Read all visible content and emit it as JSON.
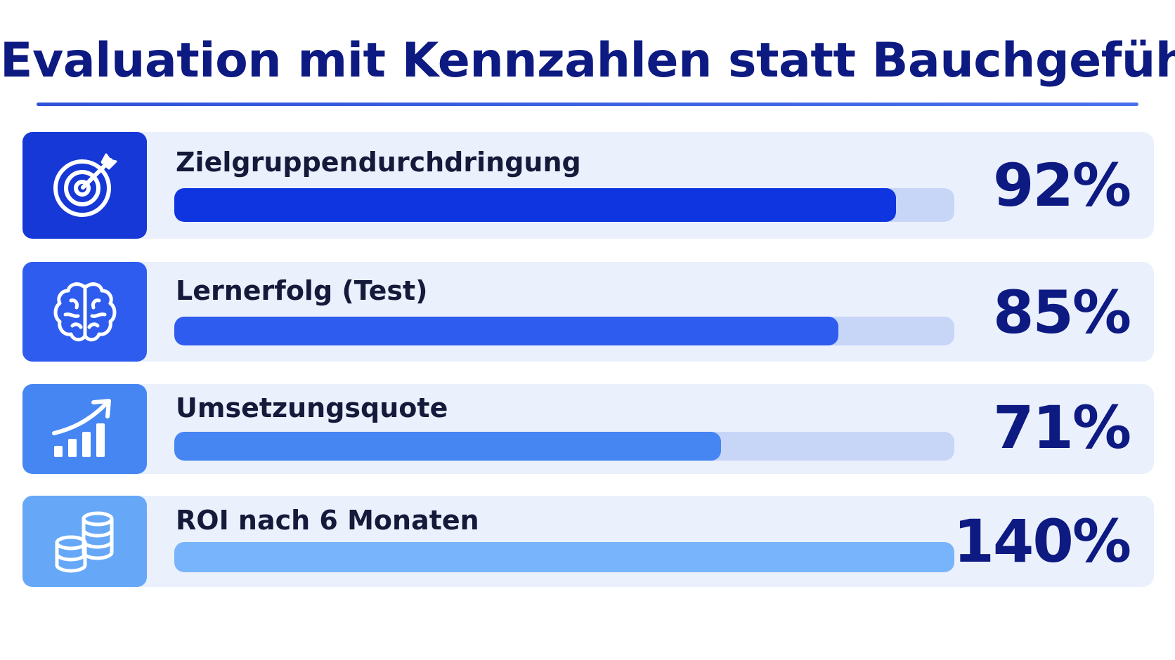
{
  "title": "Evaluation mit Kennzahlen statt Bauchgefühl",
  "colors": {
    "title": "#0d1a82",
    "rule": "#2f52d9",
    "row_background": "#eaf0fc",
    "bar_track": "#c7d6f7",
    "label": "#151a3a",
    "value": "#0d1a82"
  },
  "chart_data": {
    "type": "bar",
    "orientation": "horizontal",
    "title": "Evaluation mit Kennzahlen statt Bauchgefühl",
    "categories": [
      "Zielgruppendurchdringung",
      "Lernerfolg (Test)",
      "Umsetzungsquote",
      "ROI nach 6 Monaten"
    ],
    "values": [
      92,
      85,
      71,
      140
    ],
    "value_labels": [
      "92%",
      "85%",
      "71%",
      "140%"
    ],
    "bar_fill_fraction": [
      0.925,
      0.851,
      0.701,
      1.0
    ],
    "unit": "%",
    "grid": false,
    "legend": "none",
    "items": [
      {
        "label": "Zielgruppendurchdringung",
        "value": 92,
        "value_label": "92%",
        "icon": "target-icon",
        "color": "#0f35e0",
        "icon_bg": "#1538d6"
      },
      {
        "label": "Lernerfolg (Test)",
        "value": 85,
        "value_label": "85%",
        "icon": "brain-icon",
        "color": "#2e5cee",
        "icon_bg": "#2e5cee"
      },
      {
        "label": "Umsetzungsquote",
        "value": 71,
        "value_label": "71%",
        "icon": "growth-chart-icon",
        "color": "#4586f3",
        "icon_bg": "#4586f3"
      },
      {
        "label": "ROI nach 6 Monaten",
        "value": 140,
        "value_label": "140%",
        "icon": "coins-icon",
        "color": "#78b4fb",
        "icon_bg": "#66a8f7"
      }
    ]
  }
}
